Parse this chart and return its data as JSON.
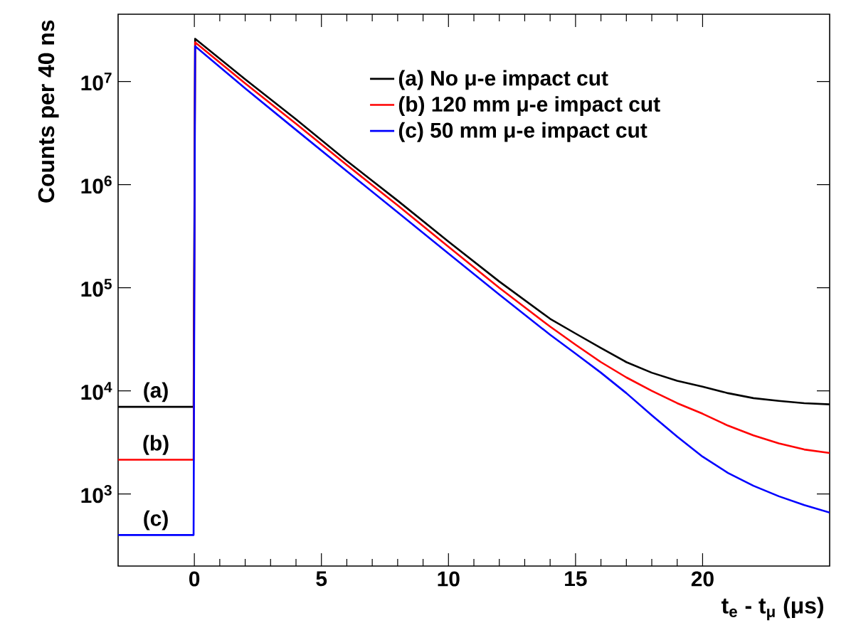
{
  "chart_data": {
    "type": "line",
    "xlabel": "t$_{e}$ - t$_{μ}$ (μs)",
    "ylabel": "Counts per 40 ns",
    "log": "y",
    "xlim": [
      -3,
      25
    ],
    "ylim": [
      200,
      45000000
    ],
    "xticks": [
      0,
      5,
      10,
      15,
      20
    ],
    "yticks": [
      {
        "value": 1000,
        "label": "10$^{3}$"
      },
      {
        "value": 10000,
        "label": "10$^{4}$"
      },
      {
        "value": 100000,
        "label": "10$^{5}$"
      },
      {
        "value": 1000000,
        "label": "10$^{6}$"
      },
      {
        "value": 10000000,
        "label": "10$^{7}$"
      }
    ],
    "x": [
      -3,
      -1.5,
      -0.03,
      0.03,
      2,
      4,
      6,
      8,
      10,
      12,
      14,
      15,
      16,
      17,
      18,
      19,
      20,
      21,
      22,
      23,
      24,
      25
    ],
    "series": [
      {
        "name": "(a) No μ-e impact cut",
        "color": "#000000",
        "values": [
          7000,
          7000,
          7000,
          26000000,
          10500000,
          4300000,
          1700000,
          700000,
          280000,
          115000,
          50000,
          36000,
          26000,
          19000,
          15000,
          12500,
          11000,
          9500,
          8500,
          8000,
          7600,
          7400
        ]
      },
      {
        "name": "(b) 120 mm μ-e impact cut",
        "color": "#ff0000",
        "values": [
          2150,
          2150,
          2150,
          24000000,
          9600000,
          3900000,
          1550000,
          630000,
          250000,
          100000,
          42000,
          28000,
          19000,
          13500,
          10000,
          7600,
          6000,
          4600,
          3700,
          3100,
          2700,
          2500
        ]
      },
      {
        "name": "(c) 50 mm μ-e impact cut",
        "color": "#0000ff",
        "values": [
          400,
          400,
          400,
          22000000,
          8600000,
          3400000,
          1350000,
          540000,
          215000,
          86000,
          35000,
          23000,
          15000,
          9500,
          5800,
          3600,
          2300,
          1600,
          1200,
          950,
          780,
          660
        ]
      }
    ],
    "annotations": [
      "(a)",
      "(b)",
      "(c)"
    ],
    "legend": "top right",
    "marker": "none",
    "line_style": "solid",
    "grid": false
  }
}
